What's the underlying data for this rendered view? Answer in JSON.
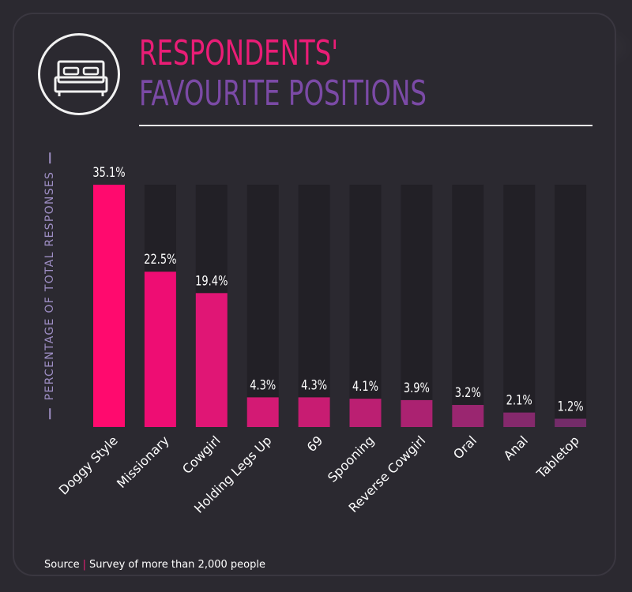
{
  "header": {
    "title_line1": "RESPONDENTS'",
    "title_line2": "FAVOURITE POSITIONS",
    "icon": "bed-icon"
  },
  "footer": {
    "source_label": "Source",
    "source_text": "Survey of more than 2,000 people"
  },
  "colors": {
    "title_line1": "#ea1d76",
    "title_line2": "#7b4aa6",
    "track": "#222026",
    "bars": [
      "#ff0a6e",
      "#ee0d73",
      "#e01675",
      "#d31a74",
      "#c81c72",
      "#bb1f72",
      "#ab2271",
      "#9a2670",
      "#85296c",
      "#742c69"
    ]
  },
  "chart_data": {
    "type": "bar",
    "ylabel": "PERCENTAGE OF TOTAL RESPONSES",
    "categories": [
      "Doggy Style",
      "Missionary",
      "Cowgirl",
      "Holding Legs Up",
      "69",
      "Spooning",
      "Reverse Cowgirl",
      "Oral",
      "Anal",
      "Tabletop"
    ],
    "values": [
      35.1,
      22.5,
      19.4,
      4.3,
      4.3,
      4.1,
      3.9,
      3.2,
      2.1,
      1.2
    ],
    "value_labels": [
      "35.1%",
      "22.5%",
      "19.4%",
      "4.3%",
      "4.3%",
      "4.1%",
      "3.9%",
      "3.2%",
      "2.1%",
      "1.2%"
    ],
    "ylim": [
      0,
      35.1
    ],
    "grid": false,
    "legend": "none"
  }
}
